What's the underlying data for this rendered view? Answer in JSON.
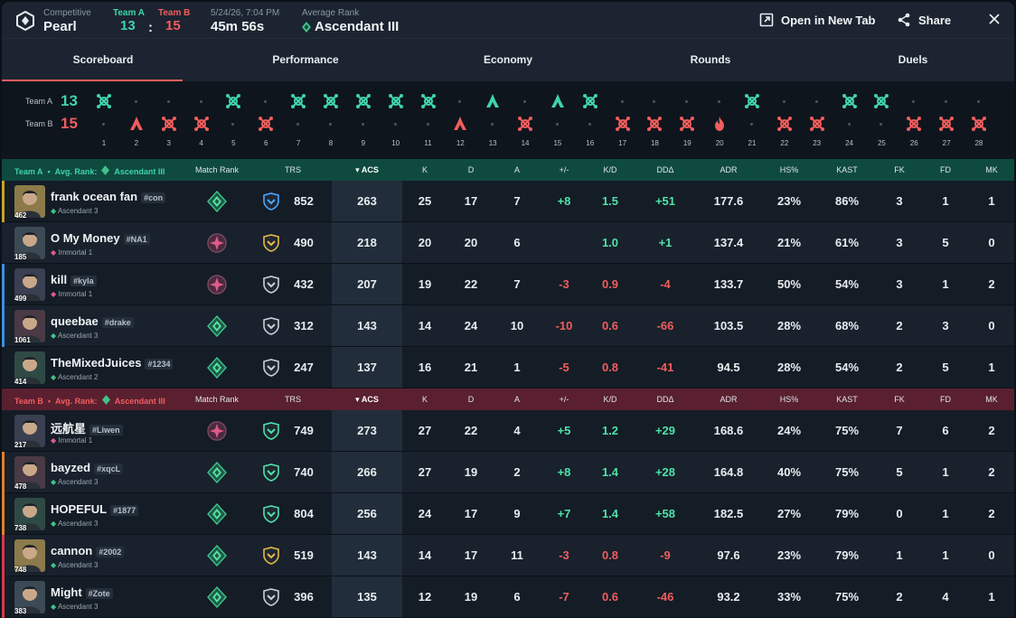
{
  "header": {
    "mode": "Competitive",
    "map": "Pearl",
    "team_a_label": "Team A",
    "team_b_label": "Team B",
    "score_a": "13",
    "score_b": "15",
    "score_sep": ":",
    "datetime": "5/24/26, 7:04 PM",
    "duration": "45m 56s",
    "avg_rank_label": "Average Rank",
    "avg_rank": "Ascendant III",
    "open_tab": "Open in New Tab",
    "share": "Share"
  },
  "tabs": [
    "Scoreboard",
    "Performance",
    "Economy",
    "Rounds",
    "Duels"
  ],
  "timeline": {
    "team_a_label": "Team A",
    "team_b_label": "Team B",
    "team_a_score": "13",
    "team_b_score": "15",
    "rounds": [
      {
        "n": "1",
        "w": "A",
        "t": "elim"
      },
      {
        "n": "2",
        "w": "B",
        "t": "defuse"
      },
      {
        "n": "3",
        "w": "B",
        "t": "elim"
      },
      {
        "n": "4",
        "w": "B",
        "t": "elim"
      },
      {
        "n": "5",
        "w": "A",
        "t": "elim"
      },
      {
        "n": "6",
        "w": "B",
        "t": "elim"
      },
      {
        "n": "7",
        "w": "A",
        "t": "elim"
      },
      {
        "n": "8",
        "w": "A",
        "t": "elim"
      },
      {
        "n": "9",
        "w": "A",
        "t": "elim"
      },
      {
        "n": "10",
        "w": "A",
        "t": "elim"
      },
      {
        "n": "11",
        "w": "A",
        "t": "elim"
      },
      {
        "n": "12",
        "w": "B",
        "t": "defuse"
      },
      {
        "n": "13",
        "w": "A",
        "t": "defuse"
      },
      {
        "n": "14",
        "w": "B",
        "t": "elim"
      },
      {
        "n": "15",
        "w": "A",
        "t": "defuse"
      },
      {
        "n": "16",
        "w": "A",
        "t": "elim"
      },
      {
        "n": "17",
        "w": "B",
        "t": "elim"
      },
      {
        "n": "18",
        "w": "B",
        "t": "elim"
      },
      {
        "n": "19",
        "w": "B",
        "t": "elim"
      },
      {
        "n": "20",
        "w": "B",
        "t": "explode"
      },
      {
        "n": "21",
        "w": "A",
        "t": "elim"
      },
      {
        "n": "22",
        "w": "B",
        "t": "elim"
      },
      {
        "n": "23",
        "w": "B",
        "t": "elim"
      },
      {
        "n": "24",
        "w": "A",
        "t": "elim"
      },
      {
        "n": "25",
        "w": "A",
        "t": "elim"
      },
      {
        "n": "26",
        "w": "B",
        "t": "elim"
      },
      {
        "n": "27",
        "w": "B",
        "t": "elim"
      },
      {
        "n": "28",
        "w": "B",
        "t": "elim"
      }
    ]
  },
  "columns": {
    "match_rank": "Match Rank",
    "trs": "TRS",
    "acs": "ACS",
    "k": "K",
    "d": "D",
    "a": "A",
    "pm": "+/-",
    "kd": "K/D",
    "dd": "DDΔ",
    "adr": "ADR",
    "hs": "HS%",
    "kast": "KAST",
    "fk": "FK",
    "fd": "FD",
    "mk": "MK",
    "avg_rank_label": "Avg. Rank:",
    "avg_rank": "Ascendant III"
  },
  "colors": {
    "team_a": "#3fd4a9",
    "team_b": "#f05d5d",
    "positive": "#4ee3a8",
    "negative": "#f05d5d"
  },
  "team_a": {
    "label": "Team A",
    "players": [
      {
        "name": "frank ocean fan",
        "tag": "#con",
        "rank": "Ascendant 3",
        "level": "462",
        "trs": "852",
        "acs": "263",
        "k": "25",
        "d": "17",
        "a": "7",
        "pm": "+8",
        "kd": "1.5",
        "dd": "+51",
        "adr": "177.6",
        "hs": "23%",
        "kast": "86%",
        "fk": "3",
        "fd": "1",
        "mk": "1",
        "bar": "#c9a227",
        "mr": "ascendant",
        "trs_icon": "blue"
      },
      {
        "name": "O My Money",
        "tag": "#NA1",
        "rank": "Immortal 1",
        "level": "185",
        "trs": "490",
        "acs": "218",
        "k": "20",
        "d": "20",
        "a": "6",
        "pm": "",
        "kd": "1.0",
        "dd": "+1",
        "adr": "137.4",
        "hs": "21%",
        "kast": "61%",
        "fk": "3",
        "fd": "5",
        "mk": "0",
        "bar": "",
        "mr": "immortal",
        "trs_icon": "gold"
      },
      {
        "name": "kill",
        "tag": "#kyla",
        "rank": "Immortal 1",
        "level": "499",
        "trs": "432",
        "acs": "207",
        "k": "19",
        "d": "22",
        "a": "7",
        "pm": "-3",
        "kd": "0.9",
        "dd": "-4",
        "adr": "133.7",
        "hs": "50%",
        "kast": "54%",
        "fk": "3",
        "fd": "1",
        "mk": "2",
        "bar": "#3b8fe0",
        "mr": "immortal",
        "trs_icon": "silver"
      },
      {
        "name": "queebae",
        "tag": "#drake",
        "rank": "Ascendant 3",
        "level": "1061",
        "trs": "312",
        "acs": "143",
        "k": "14",
        "d": "24",
        "a": "10",
        "pm": "-10",
        "kd": "0.6",
        "dd": "-66",
        "adr": "103.5",
        "hs": "28%",
        "kast": "68%",
        "fk": "2",
        "fd": "3",
        "mk": "0",
        "bar": "#3b8fe0",
        "mr": "ascendant",
        "trs_icon": "silver"
      },
      {
        "name": "TheMixedJuices",
        "tag": "#1234",
        "rank": "Ascendant 2",
        "level": "414",
        "trs": "247",
        "acs": "137",
        "k": "16",
        "d": "21",
        "a": "1",
        "pm": "-5",
        "kd": "0.8",
        "dd": "-41",
        "adr": "94.5",
        "hs": "28%",
        "kast": "54%",
        "fk": "2",
        "fd": "5",
        "mk": "1",
        "bar": "",
        "mr": "ascendant",
        "trs_icon": "silver"
      }
    ]
  },
  "team_b": {
    "label": "Team B",
    "players": [
      {
        "name": "远航星",
        "tag": "#Liwen",
        "rank": "Immortal 1",
        "level": "217",
        "trs": "749",
        "acs": "273",
        "k": "27",
        "d": "22",
        "a": "4",
        "pm": "+5",
        "kd": "1.2",
        "dd": "+29",
        "adr": "168.6",
        "hs": "24%",
        "kast": "75%",
        "fk": "7",
        "fd": "6",
        "mk": "2",
        "bar": "",
        "mr": "immortal",
        "trs_icon": "green"
      },
      {
        "name": "bayzed",
        "tag": "#xqcL",
        "rank": "Ascendant 3",
        "level": "478",
        "trs": "740",
        "acs": "266",
        "k": "27",
        "d": "19",
        "a": "2",
        "pm": "+8",
        "kd": "1.4",
        "dd": "+28",
        "adr": "164.8",
        "hs": "40%",
        "kast": "75%",
        "fk": "5",
        "fd": "1",
        "mk": "2",
        "bar": "#e0802b",
        "mr": "ascendant",
        "trs_icon": "green"
      },
      {
        "name": "HOPEFUL",
        "tag": "#1877",
        "rank": "Ascendant 3",
        "level": "738",
        "trs": "804",
        "acs": "256",
        "k": "24",
        "d": "17",
        "a": "9",
        "pm": "+7",
        "kd": "1.4",
        "dd": "+58",
        "adr": "182.5",
        "hs": "27%",
        "kast": "79%",
        "fk": "0",
        "fd": "1",
        "mk": "2",
        "bar": "#e0802b",
        "mr": "ascendant",
        "trs_icon": "green"
      },
      {
        "name": "cannon",
        "tag": "#2002",
        "rank": "Ascendant 3",
        "level": "748",
        "trs": "519",
        "acs": "143",
        "k": "14",
        "d": "17",
        "a": "11",
        "pm": "-3",
        "kd": "0.8",
        "dd": "-9",
        "adr": "97.6",
        "hs": "23%",
        "kast": "79%",
        "fk": "1",
        "fd": "1",
        "mk": "0",
        "bar": "#d33a4a",
        "mr": "ascendant",
        "trs_icon": "gold"
      },
      {
        "name": "Might",
        "tag": "#Zote",
        "rank": "Ascendant 3",
        "level": "383",
        "trs": "396",
        "acs": "135",
        "k": "12",
        "d": "19",
        "a": "6",
        "pm": "-7",
        "kd": "0.6",
        "dd": "-46",
        "adr": "93.2",
        "hs": "33%",
        "kast": "75%",
        "fk": "2",
        "fd": "4",
        "mk": "1",
        "bar": "#d33a4a",
        "mr": "ascendant",
        "trs_icon": "silver"
      }
    ]
  }
}
